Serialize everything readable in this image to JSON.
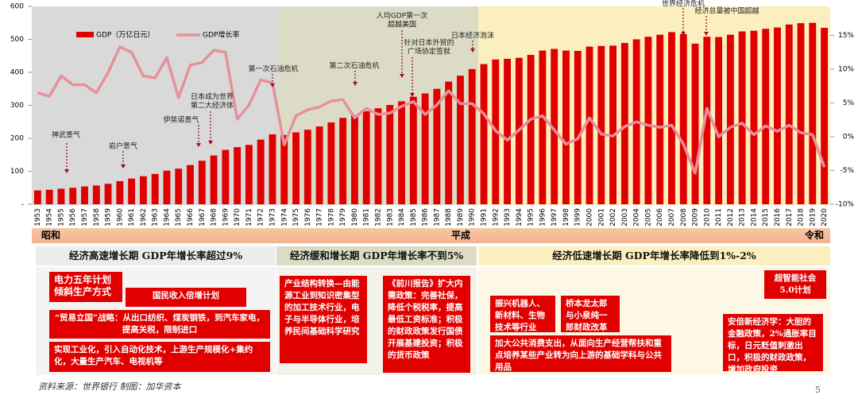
{
  "chart_data": {
    "type": "bar",
    "categories": [
      "1953",
      "1954",
      "1955",
      "1956",
      "1957",
      "1958",
      "1959",
      "1960",
      "1961",
      "1962",
      "1963",
      "1964",
      "1965",
      "1966",
      "1967",
      "1968",
      "1969",
      "1970",
      "1971",
      "1972",
      "1973",
      "1974",
      "1975",
      "1976",
      "1977",
      "1978",
      "1979",
      "1980",
      "1981",
      "1982",
      "1983",
      "1984",
      "1985",
      "1986",
      "1987",
      "1988",
      "1989",
      "1990",
      "1991",
      "1992",
      "1993",
      "1994",
      "1995",
      "1996",
      "1997",
      "1998",
      "1999",
      "2000",
      "2001",
      "2002",
      "2003",
      "2004",
      "2005",
      "2006",
      "2007",
      "2008",
      "2009",
      "2010",
      "2011",
      "2012",
      "2013",
      "2014",
      "2015",
      "2016",
      "2017",
      "2018",
      "2019",
      "2020"
    ],
    "series": [
      {
        "name": "GDP（万亿日元）",
        "color": "#e00000",
        "values": [
          42,
          44,
          47,
          50,
          54,
          57,
          62,
          70,
          78,
          85,
          92,
          102,
          108,
          119,
          132,
          148,
          165,
          173,
          180,
          196,
          212,
          210,
          218,
          226,
          236,
          248,
          262,
          270,
          282,
          291,
          301,
          312,
          326,
          336,
          350,
          372,
          390,
          410,
          425,
          439,
          441,
          444,
          453,
          466,
          471,
          466,
          465,
          478,
          480,
          481,
          489,
          500,
          508,
          514,
          522,
          516,
          487,
          508,
          507,
          514,
          524,
          526,
          532,
          536,
          545,
          549,
          550,
          535
        ]
      },
      {
        "name": "GDP增长率",
        "type": "line",
        "axis": "y2",
        "color": "#e8909a",
        "values": [
          6.5,
          6,
          9,
          7.7,
          7.7,
          6.5,
          9.5,
          13.3,
          12.5,
          9,
          8.7,
          11.7,
          5.8,
          10.6,
          11,
          12.8,
          12.5,
          2.6,
          4.7,
          8.4,
          8,
          -1.2,
          3.1,
          4,
          4.4,
          5.3,
          5.5,
          2.8,
          4.2,
          3.3,
          3.5,
          4.5,
          5.2,
          3.3,
          4.7,
          6.8,
          4.9,
          4.9,
          3.4,
          0.9,
          -0.5,
          1,
          2.6,
          3.1,
          1,
          -1.1,
          -0.3,
          2.8,
          0.4,
          0.1,
          1.5,
          2.2,
          1.7,
          1.4,
          1.7,
          -1.1,
          -5.4,
          4.2,
          0,
          1.4,
          2,
          0.3,
          1.6,
          0.8,
          1.7,
          0.6,
          0.3,
          -4.5
        ]
      }
    ],
    "ylim": [
      0,
      600
    ],
    "yticks": [
      {
        "value": 0,
        "label": "-"
      },
      100,
      200,
      300,
      400,
      500,
      600
    ],
    "y2lim": [
      -10,
      19.3
    ],
    "y2ticks": [
      {
        "value": -10,
        "label": "-10%"
      },
      {
        "value": -5,
        "label": "-5%"
      },
      {
        "value": 0,
        "label": "0%"
      },
      {
        "value": 5,
        "label": "5%"
      },
      {
        "value": 10,
        "label": "10%"
      },
      {
        "value": 15,
        "label": "15%"
      }
    ],
    "legend": "top-left",
    "annotations": [
      {
        "lines": [
          "神武景气"
        ]
      },
      {
        "lines": [
          "岩户景气"
        ]
      },
      {
        "lines": [
          "伊奘诺景气"
        ]
      },
      {
        "lines": [
          "日本成为世界",
          "第二大经济体"
        ]
      },
      {
        "lines": [
          "第一次石油危机"
        ]
      },
      {
        "lines": [
          "第二次石油危机"
        ]
      },
      {
        "lines": [
          "人均GDP第一次",
          "超越美国"
        ]
      },
      {
        "lines": [
          "针对日本外贸的",
          "广场协定签就"
        ]
      },
      {
        "lines": [
          "日本经济泡沫"
        ]
      },
      {
        "lines": [
          "世界经济危机"
        ]
      },
      {
        "lines": [
          "经济总量被中国超越"
        ]
      }
    ]
  },
  "eras": [
    "昭和",
    "平成",
    "令和"
  ],
  "periods": [
    {
      "heading": "经济高速增长期  GDP年增长率超过9%",
      "measures": [
        "电力五年计划 倾斜生产方式",
        "国民收入倍增计划",
        "“贸易立国”战略：从出口纺织、煤炭钢铁，到汽车家电，提高关税，限制进口",
        "实现工业化，引入自动化技术，上游生产规模化+集约化，大量生产汽车、电视机等"
      ]
    },
    {
      "heading": "经济缓和增长期  GDP年增长率不到5%",
      "measures": [
        "产业结构转换—由能源工业到知识密集型的加工技术行业，电子与半导体行业，培养民间基础科学研究",
        "《前川报告》扩大内需政策：完善社保，降低个税税率，提高最低工资标准；积极的财政政策发行国债开展基建投资；积极的货币政策"
      ]
    },
    {
      "heading": "经济低速增长期    GDP年增长率降低到1%-2%",
      "measures": [
        "振兴机器人、新材料、生物技术等行业",
        "桥本龙太郎与小泉纯一郎财政改革",
        "加大公共消费支出，从面向生产经营帮扶和重点培养某些产业转为向上游的基础学科与公共用品",
        "超智能社会5.0计划",
        "安倍新经济学：大胆的金融政策，2%通胀率目标，日元贬值刺激出口，积极的财政政策，增加政府投资"
      ]
    }
  ],
  "footer": "资料来源：世界银行   制图：加华资本",
  "page_number": "5"
}
